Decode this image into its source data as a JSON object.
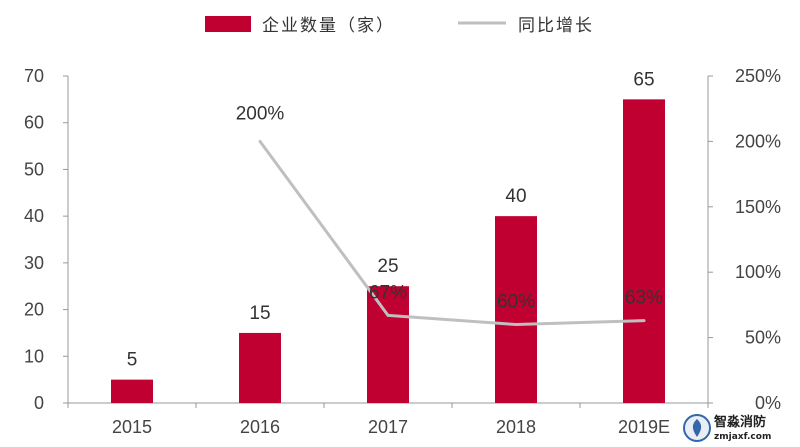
{
  "chart_data": {
    "type": "bar",
    "categories": [
      "2015",
      "2016",
      "2017",
      "2018",
      "2019E"
    ],
    "series": [
      {
        "name": "企业数量（家）",
        "type": "bar",
        "axis": "left",
        "values": [
          5,
          15,
          25,
          40,
          65
        ],
        "labels": [
          "5",
          "15",
          "25",
          "40",
          "65"
        ],
        "color": "#c00030"
      },
      {
        "name": "同比增长",
        "type": "line",
        "axis": "right",
        "values": [
          null,
          200,
          67,
          60,
          63
        ],
        "labels": [
          "",
          "200%",
          "67%",
          "60%",
          "63%"
        ],
        "color": "#bfbfbf"
      }
    ],
    "y_left": {
      "min": 0,
      "max": 70,
      "ticks": [
        "0",
        "10",
        "20",
        "30",
        "40",
        "50",
        "60",
        "70"
      ]
    },
    "y_right": {
      "min": 0,
      "max": 250,
      "ticks": [
        "0%",
        "50%",
        "100%",
        "150%",
        "200%",
        "250%"
      ]
    },
    "legend_position": "top",
    "grid": false
  },
  "watermark": {
    "name": "智淼消防",
    "url": "zmjaxf.com"
  }
}
